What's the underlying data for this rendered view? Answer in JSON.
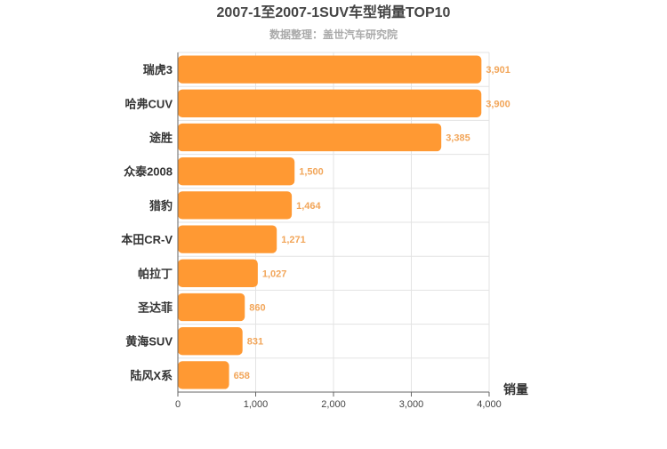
{
  "chart_data": {
    "type": "bar",
    "orientation": "horizontal",
    "title": "2007-1至2007-1SUV车型销量TOP10",
    "subtitle": "数据整理：盖世汽车研究院",
    "categories": [
      "瑞虎3",
      "哈弗CUV",
      "途胜",
      "众泰2008",
      "猎豹",
      "本田CR-V",
      "帕拉丁",
      "圣达菲",
      "黄海SUV",
      "陆风X系"
    ],
    "values": [
      3901,
      3900,
      3385,
      1500,
      1464,
      1271,
      1027,
      860,
      831,
      658
    ],
    "value_labels": [
      "3,901",
      "3,900",
      "3,385",
      "1,500",
      "1,464",
      "1,271",
      "1,027",
      "860",
      "831",
      "658"
    ],
    "xlabel": "销量",
    "xlim": [
      0,
      4000
    ],
    "x_ticks": [
      0,
      1000,
      2000,
      3000,
      4000
    ],
    "x_tick_labels": [
      "0",
      "1,000",
      "2,000",
      "3,000",
      "4,000"
    ],
    "grid": true,
    "colors": {
      "bar": "#ff9933",
      "label": "#f2a65a",
      "title": "#444444",
      "subtitle": "#aaaaaa",
      "grid": "#e3e3e3",
      "axis": "#666666",
      "tick_text": "#444444",
      "category_text": "#333333"
    }
  }
}
